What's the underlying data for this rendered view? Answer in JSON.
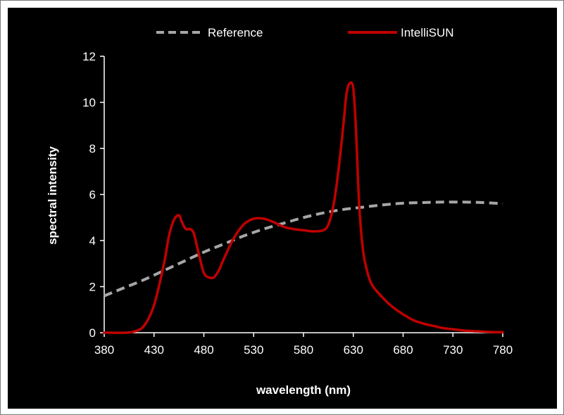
{
  "chart_data": {
    "type": "line",
    "title": "",
    "xlabel": "wavelength (nm)",
    "ylabel": "spectral intensity",
    "xlim": [
      380,
      780
    ],
    "ylim": [
      0,
      12
    ],
    "x_ticks": [
      "380",
      "430",
      "480",
      "530",
      "580",
      "630",
      "680",
      "730",
      "780"
    ],
    "y_ticks": [
      "0",
      "2",
      "4",
      "6",
      "8",
      "10",
      "12"
    ],
    "grid": false,
    "legend_position": "top",
    "background_color": "#000000",
    "series": [
      {
        "name": "Reference",
        "color": "#a6a6a6",
        "style": "dashed",
        "x": [
          380,
          400,
          420,
          440,
          460,
          480,
          500,
          520,
          540,
          560,
          580,
          600,
          620,
          640,
          660,
          680,
          700,
          720,
          740,
          760,
          780
        ],
        "y": [
          1.6,
          1.95,
          2.3,
          2.7,
          3.1,
          3.5,
          3.85,
          4.2,
          4.5,
          4.75,
          5.0,
          5.2,
          5.35,
          5.45,
          5.55,
          5.62,
          5.65,
          5.67,
          5.67,
          5.65,
          5.6
        ]
      },
      {
        "name": "IntelliSUN",
        "color": "#c00000",
        "style": "solid",
        "x": [
          380,
          400,
          410,
          420,
          430,
          440,
          445,
          450,
          455,
          458,
          462,
          466,
          470,
          475,
          480,
          485,
          490,
          495,
          500,
          510,
          520,
          530,
          540,
          550,
          560,
          570,
          580,
          590,
          600,
          605,
          610,
          615,
          620,
          623,
          626,
          630,
          633,
          636,
          640,
          645,
          650,
          660,
          670,
          680,
          690,
          700,
          710,
          720,
          730,
          740,
          750,
          760,
          770,
          780
        ],
        "y": [
          0,
          0,
          0.05,
          0.3,
          1.2,
          3.0,
          4.2,
          4.9,
          5.1,
          4.8,
          4.5,
          4.5,
          4.3,
          3.4,
          2.6,
          2.4,
          2.4,
          2.7,
          3.2,
          4.1,
          4.7,
          4.95,
          4.95,
          4.8,
          4.6,
          4.5,
          4.45,
          4.4,
          4.45,
          4.7,
          5.5,
          7.0,
          9.0,
          10.3,
          10.8,
          10.6,
          8.5,
          5.5,
          3.5,
          2.5,
          2.0,
          1.5,
          1.1,
          0.8,
          0.55,
          0.4,
          0.3,
          0.2,
          0.15,
          0.1,
          0.07,
          0.05,
          0.03,
          0.02
        ]
      }
    ]
  }
}
